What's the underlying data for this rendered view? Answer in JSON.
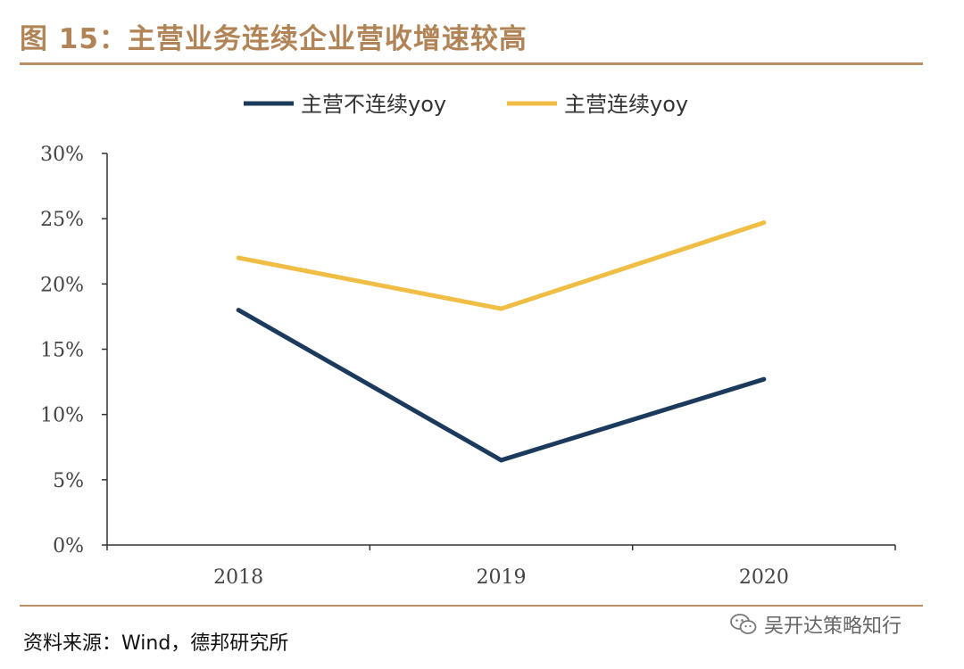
{
  "figure": {
    "title": "图 15：主营业务连续企业营收增速较高",
    "source": "资料来源：Wind，德邦研究所",
    "watermark": "吴开达策略知行"
  },
  "colors": {
    "accent": "#b08457",
    "series_noncontinuous": "#1b3a5c",
    "series_continuous": "#f0be45",
    "axis": "#333333"
  },
  "chart_data": {
    "type": "line",
    "title": "",
    "xlabel": "",
    "ylabel": "",
    "categories": [
      "2018",
      "2019",
      "2020"
    ],
    "ylim": [
      0,
      30
    ],
    "yticks": [
      0,
      5,
      10,
      15,
      20,
      25,
      30
    ],
    "ytick_labels": [
      "0%",
      "5%",
      "10%",
      "15%",
      "20%",
      "25%",
      "30%"
    ],
    "grid": false,
    "legend_position": "top-center",
    "series": [
      {
        "name": "主营不连续yoy",
        "color": "#1b3a5c",
        "values": [
          18.0,
          6.5,
          12.7
        ]
      },
      {
        "name": "主营连续yoy",
        "color": "#f0be45",
        "values": [
          22.0,
          18.1,
          24.7
        ]
      }
    ]
  }
}
